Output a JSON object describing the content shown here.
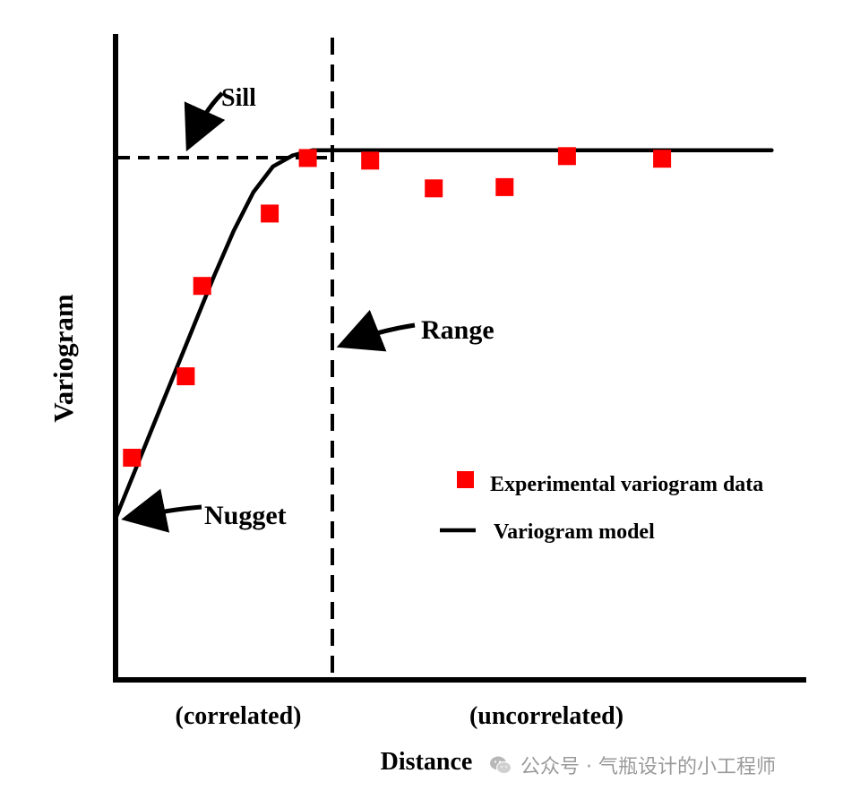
{
  "chart_data": {
    "type": "scatter",
    "xlabel": "Distance",
    "ylabel": "Variogram",
    "xlim": [
      0,
      10
    ],
    "ylim": [
      0,
      10
    ],
    "grid": false,
    "legend_position": "center-right",
    "series": [
      {
        "name": "Experimental variogram data",
        "kind": "scatter",
        "color": "#ff0000",
        "marker": "square",
        "x": [
          0.25,
          1.07,
          1.32,
          2.35,
          2.93,
          3.88,
          4.85,
          5.93,
          6.88,
          8.33
        ],
        "y": [
          3.44,
          4.7,
          6.1,
          7.22,
          8.08,
          8.04,
          7.61,
          7.63,
          8.11,
          8.07
        ]
      },
      {
        "name": "Variogram model",
        "kind": "line",
        "color": "#000000",
        "x": [
          0,
          0.3,
          0.6,
          0.9,
          1.2,
          1.5,
          1.8,
          2.1,
          2.4,
          2.7,
          3.0,
          3.3,
          3.6,
          10.0
        ],
        "y": [
          2.5,
          3.25,
          4.0,
          4.75,
          5.5,
          6.25,
          6.95,
          7.55,
          7.95,
          8.12,
          8.2,
          8.2,
          8.2,
          8.2
        ]
      }
    ],
    "annotations": {
      "sill": {
        "label": "Sill",
        "y": 8.2
      },
      "range": {
        "label": "Range",
        "x": 3.15
      },
      "nugget": {
        "label": "Nugget",
        "y": 2.5
      },
      "region_left": "(correlated)",
      "region_right": "(uncorrelated)"
    }
  },
  "watermark": {
    "text": "公众号 · 气瓶设计的小工程师",
    "icon": "wechat-icon"
  }
}
